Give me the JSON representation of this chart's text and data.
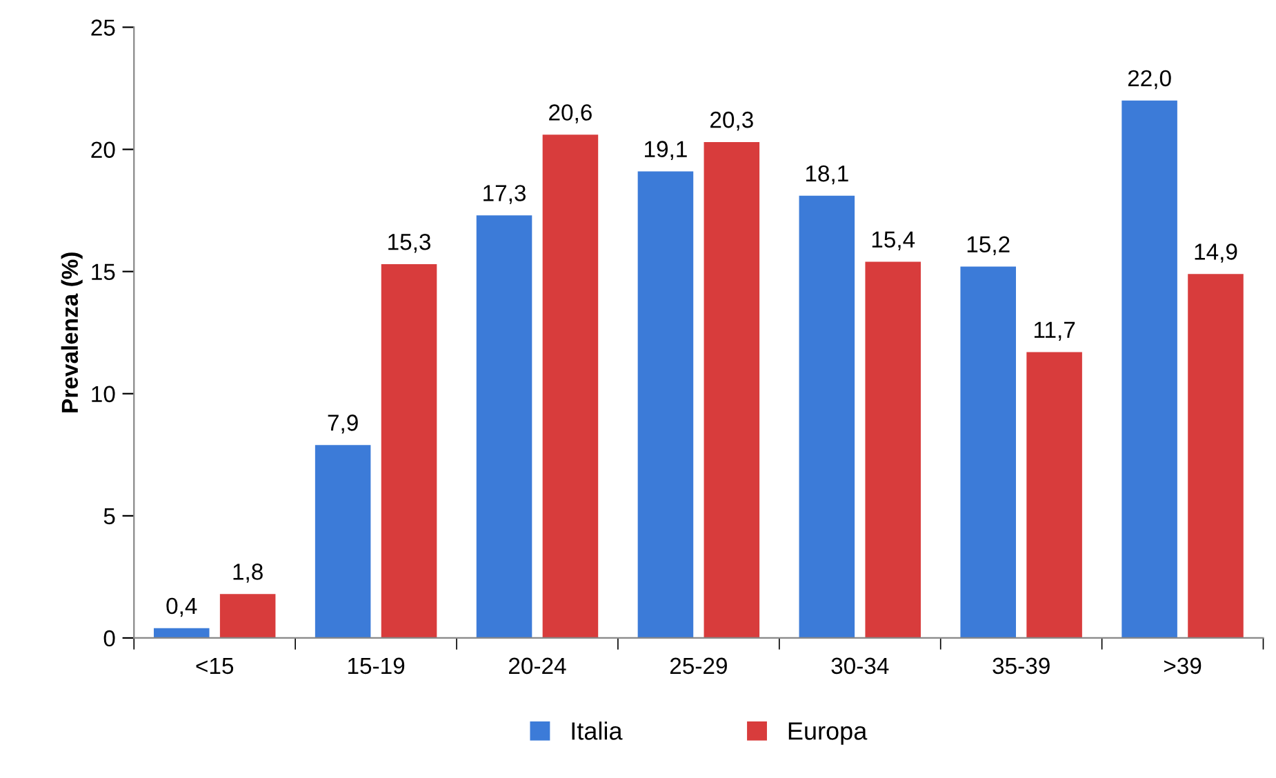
{
  "chart_data": {
    "type": "bar",
    "ylabel": "Prevalenza (%)",
    "categories": [
      "<15",
      "15-19",
      "20-24",
      "25-29",
      "30-34",
      "35-39",
      ">39"
    ],
    "series": [
      {
        "name": "Italia",
        "color": "#3c7bd8",
        "values": [
          0.4,
          7.9,
          17.3,
          19.1,
          18.1,
          15.2,
          22.0
        ],
        "value_labels": [
          "0,4",
          "7,9",
          "17,3",
          "19,1",
          "18,1",
          "15,2",
          "22,0"
        ]
      },
      {
        "name": "Europa",
        "color": "#d83c3c",
        "values": [
          1.8,
          15.3,
          20.6,
          20.3,
          15.4,
          11.7,
          14.9
        ],
        "value_labels": [
          "1,8",
          "15,3",
          "20,6",
          "20,3",
          "15,4",
          "11,7",
          "14,9"
        ]
      }
    ],
    "ylim": [
      0,
      25
    ],
    "yticks": [
      0,
      5,
      10,
      15,
      20,
      25
    ],
    "grid": false,
    "legend": "bottom"
  }
}
